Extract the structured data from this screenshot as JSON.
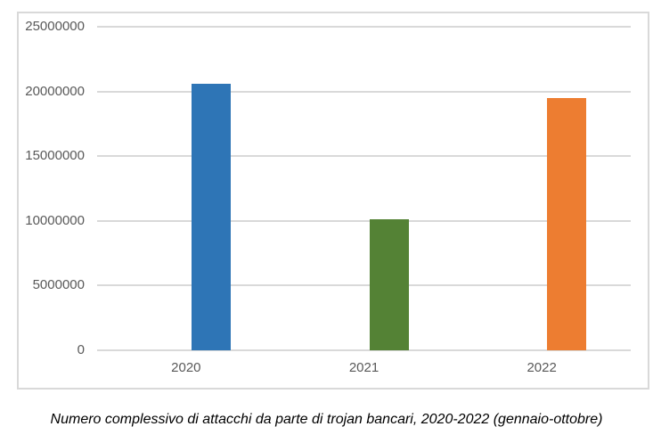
{
  "caption": "Numero complessivo di attacchi da parte di trojan bancari, 2020-2022 (gennaio-ottobre)",
  "chart_data": {
    "type": "bar",
    "categories": [
      "2020",
      "2021",
      "2022"
    ],
    "values": [
      20600000,
      10100000,
      19500000
    ],
    "bar_colors": [
      "#2E75B6",
      "#548235",
      "#ED7D31"
    ],
    "title": "Numero complessivo di attacchi da parte di trojan bancari, 2020-2022 (gennaio-ottobre)",
    "xlabel": "",
    "ylabel": "",
    "ylim": [
      0,
      25000000
    ],
    "ytick_step": 5000000,
    "ytick_labels": [
      "0",
      "5000000",
      "10000000",
      "15000000",
      "20000000",
      "25000000"
    ],
    "grid": true,
    "legend": false,
    "colors": {
      "axis_text": "#595959",
      "gridline": "#D9D9D9",
      "frame_border": "#D9D9D9",
      "background": "#FFFFFF",
      "caption_text": "#000000"
    }
  }
}
